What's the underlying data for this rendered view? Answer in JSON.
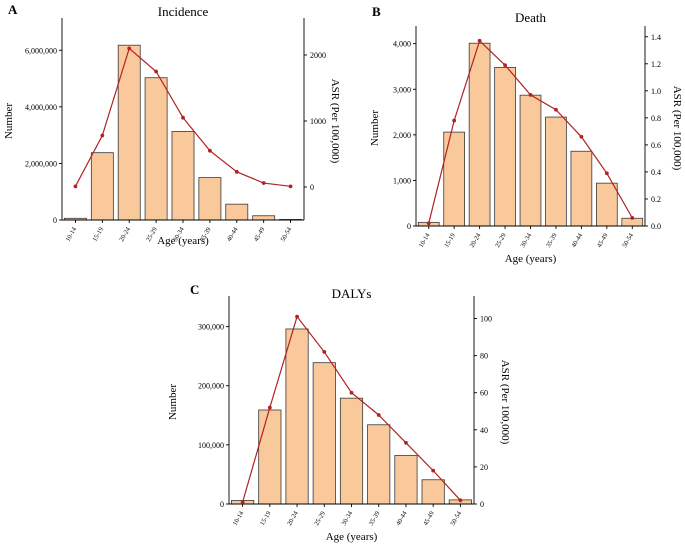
{
  "chart_data": [
    {
      "panel": "A",
      "type": "bar",
      "title": "Incidence",
      "xlabel": "Age (years)",
      "ylabel": "Number",
      "ylabel_right": "ASR (Per 100,000)",
      "categories": [
        "10-14",
        "15-19",
        "20-24",
        "25-29",
        "30-34",
        "35-39",
        "40-44",
        "45-49",
        "50-54"
      ],
      "ylim": [
        0,
        7000000
      ],
      "yticks": [
        0,
        2000000,
        4000000,
        6000000
      ],
      "ytick_labels": [
        "0",
        "2,000,000",
        "4,000,000",
        "6,000,000"
      ],
      "ylim_right": [
        -500,
        2500
      ],
      "yticks_right": [
        0,
        1000,
        2000
      ],
      "ytick_labels_right": [
        "0",
        "1000",
        "2000"
      ],
      "series": [
        {
          "name": "Number",
          "type": "bar",
          "axis": "left",
          "values": [
            60000,
            2380000,
            6180000,
            5030000,
            3130000,
            1500000,
            560000,
            150000,
            20000
          ]
        },
        {
          "name": "ASR",
          "type": "line",
          "axis": "right",
          "color": "#b22222",
          "values": [
            10,
            780,
            2100,
            1750,
            1050,
            550,
            230,
            60,
            10
          ]
        }
      ]
    },
    {
      "panel": "B",
      "type": "bar",
      "title": "Death",
      "xlabel": "Age (years)",
      "ylabel": "Number",
      "ylabel_right": "ASR (Per 100,000)",
      "categories": [
        "10-14",
        "15-19",
        "20-24",
        "25-29",
        "30-34",
        "35-39",
        "40-44",
        "45-49",
        "50-54"
      ],
      "ylim": [
        0,
        4300
      ],
      "yticks": [
        0,
        1000,
        2000,
        3000,
        4000
      ],
      "ytick_labels": [
        "0",
        "1,000",
        "2,000",
        "3,000",
        "4,000"
      ],
      "ylim_right": [
        0,
        1.45
      ],
      "yticks_right": [
        0,
        0.2,
        0.4,
        0.6,
        0.8,
        1.0,
        1.2,
        1.4
      ],
      "ytick_labels_right": [
        "0.0",
        "0.2",
        "0.4",
        "0.6",
        "0.8",
        "1.0",
        "1.2",
        "1.4"
      ],
      "series": [
        {
          "name": "Number",
          "type": "bar",
          "axis": "left",
          "values": [
            80,
            2060,
            4010,
            3480,
            2870,
            2390,
            1640,
            940,
            170
          ]
        },
        {
          "name": "ASR",
          "type": "line",
          "axis": "right",
          "color": "#b22222",
          "values": [
            0.02,
            0.78,
            1.37,
            1.19,
            0.97,
            0.86,
            0.66,
            0.39,
            0.06
          ]
        }
      ]
    },
    {
      "panel": "C",
      "type": "bar",
      "title": "DALYs",
      "xlabel": "Age (years)",
      "ylabel": "Number",
      "ylabel_right": "ASR (Per 100,000)",
      "categories": [
        "10-14",
        "15-19",
        "20-24",
        "25-29",
        "30-34",
        "35-39",
        "40-44",
        "45-49",
        "50-54"
      ],
      "ylim": [
        0,
        345000
      ],
      "yticks": [
        0,
        100000,
        200000,
        300000
      ],
      "ytick_labels": [
        "0",
        "100,000",
        "200,000",
        "300,000"
      ],
      "ylim_right": [
        0,
        110
      ],
      "yticks_right": [
        0,
        20,
        40,
        60,
        80,
        100
      ],
      "ytick_labels_right": [
        "0",
        "20",
        "40",
        "60",
        "80",
        "100"
      ],
      "series": [
        {
          "name": "Number",
          "type": "bar",
          "axis": "left",
          "values": [
            6000,
            159000,
            296000,
            239000,
            179000,
            134000,
            82000,
            41000,
            7000
          ]
        },
        {
          "name": "ASR",
          "type": "line",
          "axis": "right",
          "color": "#b22222",
          "values": [
            1,
            52,
            101,
            82,
            60,
            48,
            33,
            18,
            2
          ]
        }
      ]
    }
  ]
}
